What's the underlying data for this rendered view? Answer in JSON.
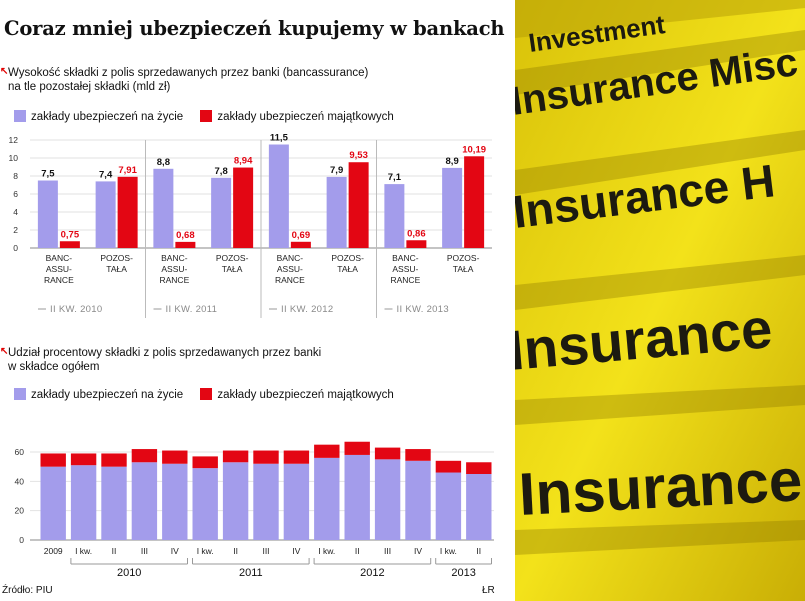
{
  "colors": {
    "life": "#a39ceb",
    "property": "#e30613",
    "photo_yellow": "#f1dd12"
  },
  "header": {
    "title": "Coraz mniej ubezpieczeń kupujemy w bankach"
  },
  "chart1": {
    "subtitle_line1": "Wysokość składki z polis sprzedawanych przez banki (bancassurance)",
    "subtitle_line2": "na tle pozostałej składki (mld zł)",
    "legend_life": "zakłady ubezpieczeń na życie",
    "legend_property": "zakłady ubezpieczeń majątkowych"
  },
  "chart2": {
    "subtitle_line1": "Udział procentowy składki z polis sprzedawanych przez banki",
    "subtitle_line2": "w składce ogółem",
    "legend_life": "zakłady ubezpieczeń na życie",
    "legend_property": "zakłady ubezpieczeń majątkowych"
  },
  "footer": {
    "source": "Źródło: PIU",
    "credit": "ŁR"
  },
  "photo": {
    "labels": [
      "Investment",
      "Insurance Misc",
      "Insurance H",
      "Insurance",
      "Insurance"
    ]
  },
  "chart_data": [
    {
      "type": "bar",
      "ylim": [
        0,
        12
      ],
      "yticks": [
        "0",
        "2",
        "4",
        "6",
        "8",
        "10",
        "12"
      ],
      "groups": [
        "II KW. 2010",
        "II KW. 2011",
        "II KW. 2012",
        "II KW. 2013"
      ],
      "category_labels": [
        "BANC-\nASSU-\nRANCE",
        "POZOS-\nTAŁA"
      ],
      "series": [
        {
          "name": "zakłady ubezpieczeń na życie",
          "values": [
            [
              7.5,
              7.4
            ],
            [
              8.8,
              7.8
            ],
            [
              11.5,
              7.9
            ],
            [
              7.1,
              8.9
            ]
          ]
        },
        {
          "name": "zakłady ubezpieczeń majątkowych",
          "values": [
            [
              0.75,
              7.91
            ],
            [
              0.68,
              8.94
            ],
            [
              0.69,
              9.53
            ],
            [
              0.86,
              10.19
            ]
          ]
        }
      ],
      "value_labels_life": [
        [
          "7,5",
          "7,4"
        ],
        [
          "8,8",
          "7,8"
        ],
        [
          "11,5",
          "7,9"
        ],
        [
          "7,1",
          "8,9"
        ]
      ],
      "value_labels_property": [
        [
          "0,75",
          "7,91"
        ],
        [
          "0,68",
          "8,94"
        ],
        [
          "0,69",
          "9,53"
        ],
        [
          "0,86",
          "10,19"
        ]
      ]
    },
    {
      "type": "bar",
      "stacked": true,
      "ylim": [
        0,
        60
      ],
      "yticks": [
        "0",
        "20",
        "40",
        "60"
      ],
      "categories": [
        "2009",
        "I kw.",
        "II",
        "III",
        "IV",
        "I kw.",
        "II",
        "III",
        "IV",
        "I kw.",
        "II",
        "III",
        "IV",
        "I kw.",
        "II"
      ],
      "years": [
        {
          "label": "2010",
          "from": 1,
          "to": 4
        },
        {
          "label": "2011",
          "from": 5,
          "to": 8
        },
        {
          "label": "2012",
          "from": 9,
          "to": 12
        },
        {
          "label": "2013",
          "from": 13,
          "to": 14
        }
      ],
      "series": [
        {
          "name": "zakłady ubezpieczeń na życie",
          "values": [
            50,
            51,
            50,
            53,
            52,
            49,
            53,
            52,
            52,
            56,
            58,
            55,
            54,
            46,
            45
          ]
        },
        {
          "name": "zakłady ubezpieczeń majątkowych",
          "values": [
            9,
            8,
            9,
            9,
            9,
            8,
            8,
            9,
            9,
            9,
            9,
            8,
            8,
            8,
            8
          ]
        }
      ]
    }
  ]
}
